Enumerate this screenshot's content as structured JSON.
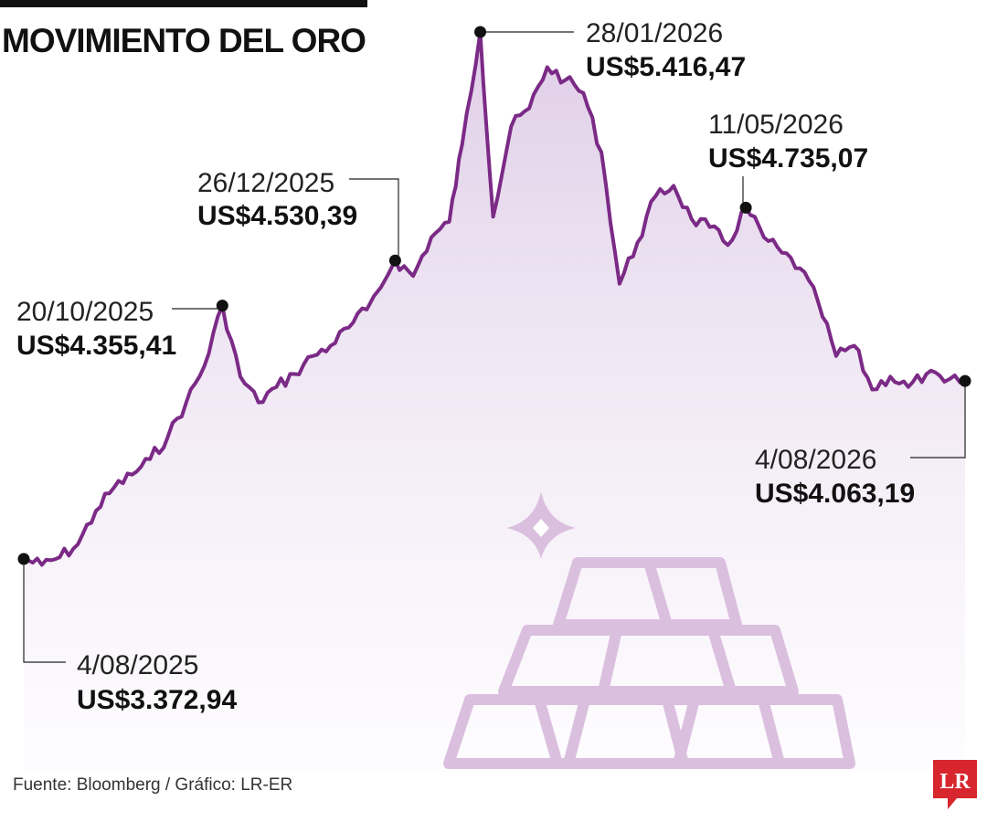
{
  "header": {
    "title": "MOVIMIENTO DEL ORO"
  },
  "footer": {
    "source": "Fuente: Bloomberg / Gráfico: LR-ER"
  },
  "brand": {
    "logo_text": "LR",
    "logo_color": "#d7262e"
  },
  "colors": {
    "line": "#7b2a86",
    "area_top": "#d9c4e3",
    "area_bottom": "#fbf8fc",
    "illustration": "#dbbfdf",
    "marker": "#111111"
  },
  "chart_data": {
    "type": "area",
    "title": "MOVIMIENTO DEL ORO",
    "xlabel": "",
    "ylabel": "",
    "unit": "US$",
    "grid": false,
    "legend": "none",
    "x_range": [
      "2025-08-04",
      "2026-08-04"
    ],
    "y_range": [
      3372.94,
      5416.47
    ],
    "series": [
      {
        "x": [
          "2025-08-04",
          "2025-08-11",
          "2025-08-18",
          "2025-08-25",
          "2025-09-01",
          "2025-09-08",
          "2025-09-15",
          "2025-09-22",
          "2025-09-29",
          "2025-10-06",
          "2025-10-13",
          "2025-10-20",
          "2025-10-27",
          "2025-11-03",
          "2025-11-10",
          "2025-11-17",
          "2025-11-24",
          "2025-12-01",
          "2025-12-08",
          "2025-12-15",
          "2025-12-26",
          "2026-01-02",
          "2026-01-09",
          "2026-01-16",
          "2026-01-21",
          "2026-01-28",
          "2026-02-02",
          "2026-02-09",
          "2026-02-16",
          "2026-02-23",
          "2026-03-02",
          "2026-03-09",
          "2026-03-16",
          "2026-03-23",
          "2026-03-30",
          "2026-04-06",
          "2026-04-13",
          "2026-04-20",
          "2026-04-27",
          "2026-05-04",
          "2026-05-11",
          "2026-05-18",
          "2026-05-25",
          "2026-06-01",
          "2026-06-08",
          "2026-06-15",
          "2026-06-22",
          "2026-06-29",
          "2026-07-06",
          "2026-07-13",
          "2026-07-20",
          "2026-07-27",
          "2026-08-04"
        ],
        "values": [
          3372.94,
          3350,
          3380,
          3430,
          3560,
          3650,
          3700,
          3760,
          3850,
          3980,
          4120,
          4355.41,
          4080,
          3980,
          4040,
          4090,
          4160,
          4200,
          4270,
          4340,
          4530.39,
          4470,
          4620,
          4680,
          4980,
          5416.47,
          4700,
          5050,
          5120,
          5280,
          5230,
          5180,
          4950,
          4440,
          4600,
          4780,
          4820,
          4690,
          4660,
          4590,
          4735.07,
          4620,
          4560,
          4500,
          4370,
          4160,
          4200,
          4030,
          4080,
          4040,
          4090,
          4060,
          4063.19
        ]
      }
    ],
    "annotations": [
      {
        "date": "4/08/2025",
        "price": "US$3.372,94"
      },
      {
        "date": "20/10/2025",
        "price": "US$4.355,41"
      },
      {
        "date": "26/12/2025",
        "price": "US$4.530,39"
      },
      {
        "date": "28/01/2026",
        "price": "US$5.416,47"
      },
      {
        "date": "11/05/2026",
        "price": "US$4.735,07"
      },
      {
        "date": "4/08/2026",
        "price": "US$4.063,19"
      }
    ]
  }
}
